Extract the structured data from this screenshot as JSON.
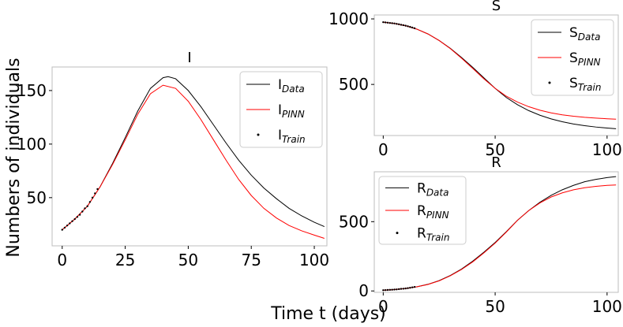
{
  "figure": {
    "ylabel": "Numbers of individuals",
    "xlabel": "Time t (days)"
  },
  "chart_data": [
    {
      "type": "line",
      "title": "I",
      "xlim": [
        -4,
        105
      ],
      "ylim": [
        5,
        172
      ],
      "xticks": [
        0,
        25,
        50,
        75,
        100
      ],
      "yticks": [
        50,
        100,
        150
      ],
      "legend_position": "top-right",
      "legend": [
        {
          "base": "I",
          "sub": "Data",
          "kind": "line",
          "color": "#000000"
        },
        {
          "base": "I",
          "sub": "PINN",
          "kind": "line",
          "color": "#ff0000"
        },
        {
          "base": "I",
          "sub": "Train",
          "kind": "marker",
          "color": "#000000"
        }
      ],
      "series": [
        {
          "name": "IData",
          "color": "#000000",
          "x": [
            0,
            5,
            10,
            15,
            20,
            25,
            30,
            35,
            40,
            42,
            45,
            50,
            55,
            60,
            65,
            70,
            75,
            80,
            85,
            90,
            95,
            100,
            104
          ],
          "y": [
            20,
            30,
            42,
            60,
            82,
            106,
            131,
            152,
            162,
            163,
            161,
            150,
            135,
            118,
            101,
            85,
            71,
            59,
            49,
            40,
            33,
            27,
            23
          ]
        },
        {
          "name": "IPINN",
          "color": "#ff0000",
          "x": [
            0,
            5,
            10,
            15,
            20,
            25,
            30,
            35,
            40,
            45,
            50,
            55,
            60,
            65,
            70,
            75,
            80,
            85,
            90,
            95,
            100,
            104
          ],
          "y": [
            20,
            30,
            42,
            60,
            81,
            104,
            128,
            147,
            155,
            152,
            140,
            123,
            104,
            85,
            67,
            52,
            40,
            31,
            24,
            19,
            15,
            12
          ]
        },
        {
          "name": "ITrain",
          "color": "#000000",
          "markers": true,
          "x": [
            0,
            1,
            2,
            3,
            4,
            5,
            6,
            7,
            8,
            9,
            10,
            11,
            12,
            13,
            14
          ],
          "y": [
            20,
            22,
            24,
            26,
            28,
            30,
            32,
            34,
            37,
            40,
            42,
            46,
            50,
            54,
            58
          ]
        }
      ]
    },
    {
      "type": "line",
      "title": "S",
      "xlim": [
        -4,
        105
      ],
      "ylim": [
        110,
        1030
      ],
      "xticks": [
        0,
        50,
        100
      ],
      "yticks": [
        500,
        1000
      ],
      "legend_position": "top-right",
      "legend": [
        {
          "base": "S",
          "sub": "Data",
          "kind": "line",
          "color": "#000000"
        },
        {
          "base": "S",
          "sub": "PINN",
          "kind": "line",
          "color": "#ff0000"
        },
        {
          "base": "S",
          "sub": "Train",
          "kind": "marker",
          "color": "#000000"
        }
      ],
      "series": [
        {
          "name": "SData",
          "color": "#000000",
          "x": [
            0,
            5,
            10,
            15,
            20,
            25,
            30,
            35,
            40,
            45,
            50,
            55,
            60,
            65,
            70,
            75,
            80,
            85,
            90,
            95,
            100,
            104
          ],
          "y": [
            975,
            965,
            948,
            922,
            885,
            835,
            775,
            705,
            630,
            550,
            470,
            400,
            345,
            300,
            265,
            237,
            215,
            198,
            185,
            175,
            167,
            162
          ]
        },
        {
          "name": "SPINN",
          "color": "#ff0000",
          "x": [
            0,
            5,
            10,
            15,
            20,
            25,
            30,
            35,
            40,
            45,
            50,
            55,
            60,
            65,
            70,
            75,
            80,
            85,
            90,
            95,
            100,
            104
          ],
          "y": [
            975,
            965,
            948,
            922,
            885,
            835,
            773,
            700,
            622,
            542,
            470,
            410,
            365,
            330,
            303,
            283,
            268,
            257,
            249,
            243,
            238,
            235
          ]
        },
        {
          "name": "STrain",
          "color": "#000000",
          "markers": true,
          "x": [
            0,
            1,
            2,
            3,
            4,
            5,
            6,
            7,
            8,
            9,
            10,
            11,
            12,
            13,
            14
          ],
          "y": [
            975,
            973,
            971,
            969,
            967,
            965,
            962,
            959,
            955,
            952,
            948,
            944,
            939,
            934,
            929
          ]
        }
      ]
    },
    {
      "type": "line",
      "title": "R",
      "xlim": [
        -4,
        105
      ],
      "ylim": [
        -10,
        860
      ],
      "xticks": [
        0,
        50,
        100
      ],
      "yticks": [
        0,
        500
      ],
      "legend_position": "top-left",
      "legend": [
        {
          "base": "R",
          "sub": "Data",
          "kind": "line",
          "color": "#000000"
        },
        {
          "base": "R",
          "sub": "PINN",
          "kind": "line",
          "color": "#ff0000"
        },
        {
          "base": "R",
          "sub": "Train",
          "kind": "marker",
          "color": "#000000"
        }
      ],
      "series": [
        {
          "name": "RData",
          "color": "#000000",
          "x": [
            0,
            5,
            10,
            15,
            20,
            25,
            30,
            35,
            40,
            45,
            50,
            55,
            60,
            65,
            70,
            75,
            80,
            85,
            90,
            95,
            100,
            104
          ],
          "y": [
            5,
            10,
            18,
            30,
            48,
            75,
            112,
            158,
            215,
            280,
            350,
            428,
            510,
            580,
            640,
            690,
            730,
            762,
            788,
            805,
            818,
            825
          ]
        },
        {
          "name": "RPINN",
          "color": "#ff0000",
          "x": [
            0,
            5,
            10,
            15,
            20,
            25,
            30,
            35,
            40,
            45,
            50,
            55,
            60,
            65,
            70,
            75,
            80,
            85,
            90,
            95,
            100,
            104
          ],
          "y": [
            5,
            10,
            18,
            30,
            47,
            73,
            110,
            155,
            210,
            275,
            345,
            425,
            510,
            580,
            635,
            678,
            708,
            730,
            745,
            755,
            762,
            765
          ]
        },
        {
          "name": "RTrain",
          "color": "#000000",
          "markers": true,
          "x": [
            0,
            1,
            2,
            3,
            4,
            5,
            6,
            7,
            8,
            9,
            10,
            11,
            12,
            13,
            14
          ],
          "y": [
            5,
            6,
            7,
            8,
            9,
            10,
            11,
            13,
            15,
            16,
            18,
            20,
            23,
            26,
            29
          ]
        }
      ]
    }
  ]
}
